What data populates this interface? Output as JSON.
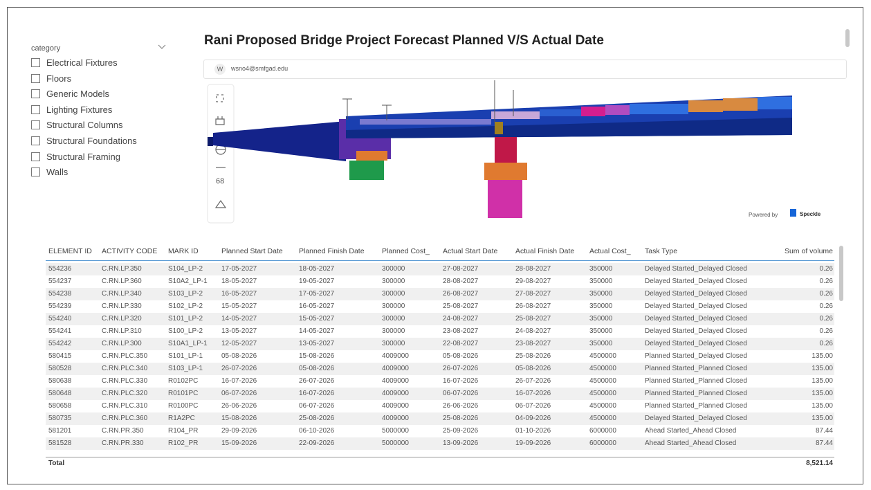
{
  "slicer": {
    "title": "category",
    "items": [
      "Electrical Fixtures",
      "Floors",
      "Generic Models",
      "Lighting Fixtures",
      "Structural Columns",
      "Structural Foundations",
      "Structural Framing",
      "Walls"
    ]
  },
  "title": "Rani Proposed Bridge Project Forecast Planned V/S Actual Date",
  "viewer": {
    "badge": "W",
    "user": "wsno4@smfgad.edu",
    "powered_by": "Powered by",
    "brand": "Speckle"
  },
  "table": {
    "columns": [
      "ELEMENT ID",
      "ACTIVITY CODE",
      "MARK ID",
      "Planned Start Date",
      "Planned Finish Date",
      "Planned Cost_",
      "Actual Start Date",
      "Actual Finish Date",
      "Actual Cost_",
      "Task Type",
      "Sum of volume"
    ],
    "rows": [
      [
        "554236",
        "C.RN.LP.350",
        "S104_LP-2",
        "17-05-2027",
        "18-05-2027",
        "300000",
        "27-08-2027",
        "28-08-2027",
        "350000",
        "Delayed Started_Delayed Closed",
        "0.26"
      ],
      [
        "554237",
        "C.RN.LP.360",
        "S10A2_LP-1",
        "18-05-2027",
        "19-05-2027",
        "300000",
        "28-08-2027",
        "29-08-2027",
        "350000",
        "Delayed Started_Delayed Closed",
        "0.26"
      ],
      [
        "554238",
        "C.RN.LP.340",
        "S103_LP-2",
        "16-05-2027",
        "17-05-2027",
        "300000",
        "26-08-2027",
        "27-08-2027",
        "350000",
        "Delayed Started_Delayed Closed",
        "0.26"
      ],
      [
        "554239",
        "C.RN.LP.330",
        "S102_LP-2",
        "15-05-2027",
        "16-05-2027",
        "300000",
        "25-08-2027",
        "26-08-2027",
        "350000",
        "Delayed Started_Delayed Closed",
        "0.26"
      ],
      [
        "554240",
        "C.RN.LP.320",
        "S101_LP-2",
        "14-05-2027",
        "15-05-2027",
        "300000",
        "24-08-2027",
        "25-08-2027",
        "350000",
        "Delayed Started_Delayed Closed",
        "0.26"
      ],
      [
        "554241",
        "C.RN.LP.310",
        "S100_LP-2",
        "13-05-2027",
        "14-05-2027",
        "300000",
        "23-08-2027",
        "24-08-2027",
        "350000",
        "Delayed Started_Delayed Closed",
        "0.26"
      ],
      [
        "554242",
        "C.RN.LP.300",
        "S10A1_LP-1",
        "12-05-2027",
        "13-05-2027",
        "300000",
        "22-08-2027",
        "23-08-2027",
        "350000",
        "Delayed Started_Delayed Closed",
        "0.26"
      ],
      [
        "580415",
        "C.RN.PLC.350",
        "S101_LP-1",
        "05-08-2026",
        "15-08-2026",
        "4009000",
        "05-08-2026",
        "25-08-2026",
        "4500000",
        "Planned Started_Delayed Closed",
        "135.00"
      ],
      [
        "580528",
        "C.RN.PLC.340",
        "S103_LP-1",
        "26-07-2026",
        "05-08-2026",
        "4009000",
        "26-07-2026",
        "05-08-2026",
        "4500000",
        "Planned Started_Planned Closed",
        "135.00"
      ],
      [
        "580638",
        "C.RN.PLC.330",
        "R0102PC",
        "16-07-2026",
        "26-07-2026",
        "4009000",
        "16-07-2026",
        "26-07-2026",
        "4500000",
        "Planned Started_Planned Closed",
        "135.00"
      ],
      [
        "580648",
        "C.RN.PLC.320",
        "R0101PC",
        "06-07-2026",
        "16-07-2026",
        "4009000",
        "06-07-2026",
        "16-07-2026",
        "4500000",
        "Planned Started_Planned Closed",
        "135.00"
      ],
      [
        "580658",
        "C.RN.PLC.310",
        "R0100PC",
        "26-06-2026",
        "06-07-2026",
        "4009000",
        "26-06-2026",
        "06-07-2026",
        "4500000",
        "Planned Started_Planned Closed",
        "135.00"
      ],
      [
        "580735",
        "C.RN.PLC.360",
        "R1A2PC",
        "15-08-2026",
        "25-08-2026",
        "4009000",
        "25-08-2026",
        "04-09-2026",
        "4500000",
        "Delayed Started_Delayed Closed",
        "135.00"
      ],
      [
        "581201",
        "C.RN.PR.350",
        "R104_PR",
        "29-09-2026",
        "06-10-2026",
        "5000000",
        "25-09-2026",
        "01-10-2026",
        "6000000",
        "Ahead Started_Ahead Closed",
        "87.44"
      ],
      [
        "581528",
        "C.RN.PR.330",
        "R102_PR",
        "15-09-2026",
        "22-09-2026",
        "5000000",
        "13-09-2026",
        "19-09-2026",
        "6000000",
        "Ahead Started_Ahead Closed",
        "87.44"
      ]
    ],
    "total_label": "Total",
    "total": "8,521.14"
  }
}
